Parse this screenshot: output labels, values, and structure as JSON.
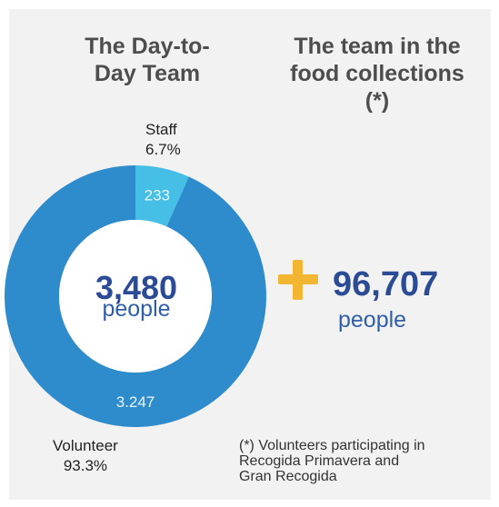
{
  "headings": {
    "left": [
      "The Day-to-",
      "Day Team"
    ],
    "right": [
      "The team in the",
      "food collections",
      "(*)"
    ]
  },
  "colors": {
    "volunteer": "#2f8ccc",
    "staff": "#46bfe6",
    "accent_plus": "#f2b632",
    "number_text": "#2b4c94"
  },
  "chart_data": {
    "type": "pie",
    "donut": true,
    "slices": [
      {
        "label": "Staff",
        "value": 233,
        "value_label": "233",
        "percent": "6.7%"
      },
      {
        "label": "Volunteer",
        "value": 3247,
        "value_label": "3.247",
        "percent": "93.3%"
      }
    ],
    "center_value": "3,480",
    "center_unit": "people"
  },
  "collections": {
    "value": "96,707",
    "unit": "people"
  },
  "footnote": [
    "(*) Volunteers participating in",
    "Recogida Primavera and",
    "Gran Recogida"
  ]
}
